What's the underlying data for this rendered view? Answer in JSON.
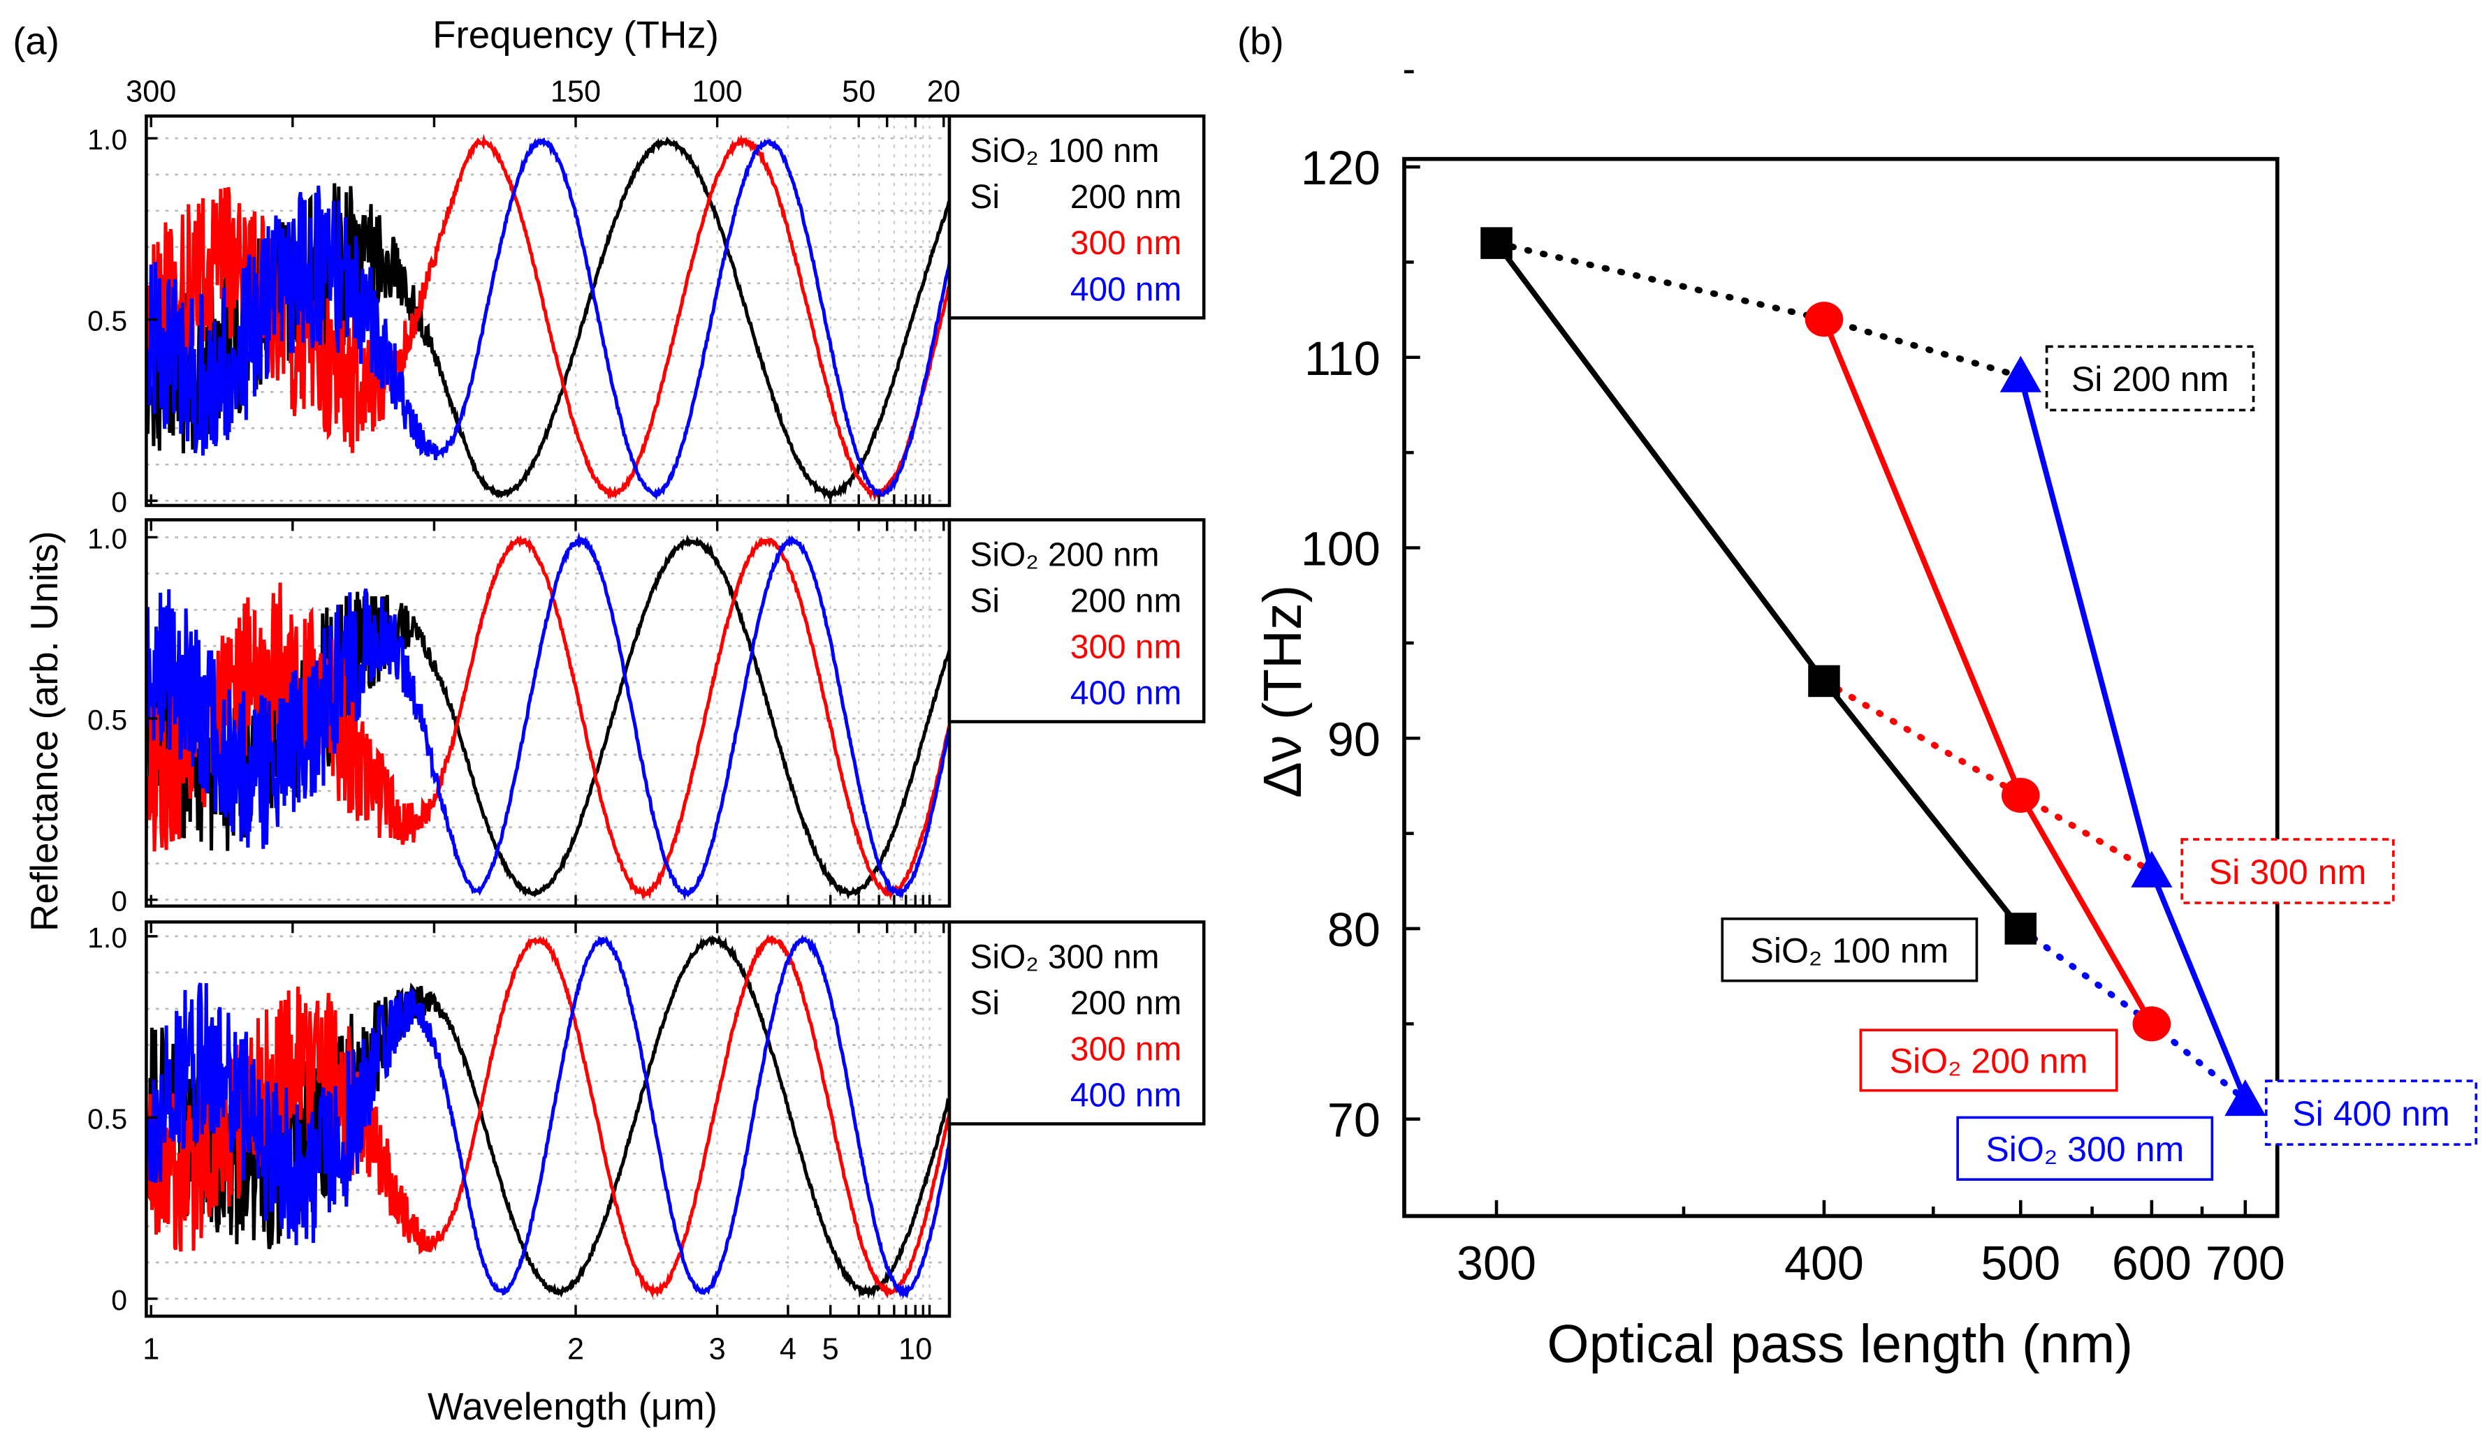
{
  "chart_data": [
    {
      "type": "line",
      "panel_label": "(a)",
      "top_axis_label": "Frequency (THz)",
      "top_ticks": [
        "300",
        "150",
        "100",
        "50",
        "20"
      ],
      "top_tick_values": [
        300,
        150,
        100,
        50,
        20
      ],
      "xlabel": "Wavelength (μm)",
      "x_ticks": [
        "1",
        "2",
        "3",
        "4",
        "5",
        "10"
      ],
      "x_tick_values": [
        1,
        2,
        3,
        4,
        5,
        10
      ],
      "ylabel": "Reflectance (arb. Units)",
      "y_ticks": [
        "0",
        "0.5",
        "1.0"
      ],
      "y_tick_values": [
        0,
        0.5,
        1.0
      ],
      "ylim": [
        0,
        1.0
      ],
      "grid": true,
      "panels": [
        {
          "legend_title": "SiO₂ 100 nm",
          "legend_si": "Si",
          "series": [
            {
              "name": "200 nm",
              "color": "#000000",
              "period_THz": 116,
              "min_freq_THz": 60
            },
            {
              "name": "300 nm",
              "color": "#ff0000",
              "period_THz": 93,
              "min_freq_THz": 44
            },
            {
              "name": "400 nm",
              "color": "#0000ff",
              "period_THz": 80,
              "min_freq_THz": 42
            }
          ]
        },
        {
          "legend_title": "SiO₂ 200 nm",
          "legend_si": "Si",
          "series": [
            {
              "name": "200 nm",
              "color": "#000000",
              "period_THz": 112,
              "min_freq_THz": 53
            },
            {
              "name": "300 nm",
              "color": "#ff0000",
              "period_THz": 87,
              "min_freq_THz": 39
            },
            {
              "name": "400 nm",
              "color": "#0000ff",
              "period_THz": 75,
              "min_freq_THz": 36
            }
          ]
        },
        {
          "legend_title": "SiO₂ 300 nm",
          "legend_si": "Si",
          "series": [
            {
              "name": "200 nm",
              "color": "#000000",
              "period_THz": 109,
              "min_freq_THz": 47
            },
            {
              "name": "300 nm",
              "color": "#ff0000",
              "period_THz": 83,
              "min_freq_THz": 39
            },
            {
              "name": "400 nm",
              "color": "#0000ff",
              "period_THz": 71,
              "min_freq_THz": 34
            }
          ]
        }
      ]
    },
    {
      "type": "line",
      "panel_label": "(b)",
      "xlabel": "Optical pass length (nm)",
      "ylabel": "Δν (THz)",
      "x_ticks": [
        "300",
        "400",
        "500",
        "600",
        "700"
      ],
      "x_tick_values": [
        300,
        400,
        500,
        600,
        700
      ],
      "y_ticks": [
        "70",
        "80",
        "90",
        "100",
        "110",
        "120"
      ],
      "y_tick_values": [
        70,
        80,
        90,
        100,
        110,
        120
      ],
      "ylim": [
        65,
        120.4
      ],
      "series": [
        {
          "name": "SiO₂ 100 nm",
          "color": "#000000",
          "style": "solid",
          "marker": "square",
          "x": [
            300,
            400,
            500
          ],
          "y": [
            116,
            93,
            80
          ]
        },
        {
          "name": "SiO₂ 200 nm",
          "color": "#ff0000",
          "style": "solid",
          "marker": "circle",
          "x": [
            400,
            500,
            600
          ],
          "y": [
            112,
            87,
            75
          ]
        },
        {
          "name": "SiO₂ 300 nm",
          "color": "#0000ff",
          "style": "solid",
          "marker": "triangle",
          "x": [
            500,
            600,
            700
          ],
          "y": [
            109,
            83,
            71
          ]
        },
        {
          "name": "Si 200 nm",
          "color": "#000000",
          "style": "dotted",
          "marker": "none",
          "x": [
            300,
            400,
            500
          ],
          "y": [
            116,
            112,
            109
          ]
        },
        {
          "name": "Si 300 nm",
          "color": "#ff0000",
          "style": "dotted",
          "marker": "none",
          "x": [
            400,
            500,
            600
          ],
          "y": [
            93,
            87,
            83
          ]
        },
        {
          "name": "Si 400 nm",
          "color": "#0000ff",
          "style": "dotted",
          "marker": "none",
          "x": [
            500,
            600,
            700
          ],
          "y": [
            80,
            75,
            71
          ]
        }
      ]
    }
  ]
}
